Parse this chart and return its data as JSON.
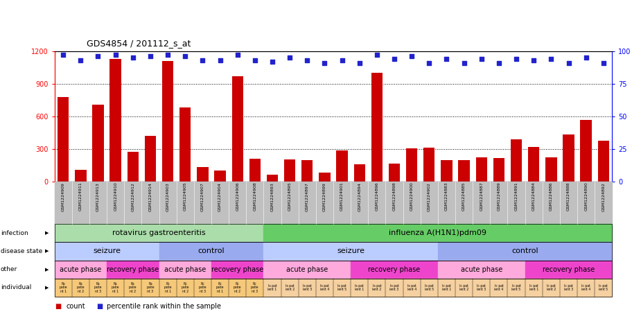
{
  "title": "GDS4854 / 201112_s_at",
  "gsm_ids": [
    "GSM1224909",
    "GSM1224911",
    "GSM1224913",
    "GSM1224910",
    "GSM1224912",
    "GSM1224914",
    "GSM1224903",
    "GSM1224905",
    "GSM1224907",
    "GSM1224904",
    "GSM1224906",
    "GSM1224908",
    "GSM1224893",
    "GSM1224895",
    "GSM1224897",
    "GSM1224899",
    "GSM1224901",
    "GSM1224894",
    "GSM1224896",
    "GSM1224898",
    "GSM1224900",
    "GSM1224902",
    "GSM1224883",
    "GSM1224885",
    "GSM1224887",
    "GSM1224889",
    "GSM1224891",
    "GSM1224884",
    "GSM1224886",
    "GSM1224888",
    "GSM1224890",
    "GSM1224892"
  ],
  "counts": [
    780,
    105,
    710,
    1130,
    275,
    420,
    1110,
    680,
    130,
    100,
    970,
    210,
    60,
    205,
    195,
    85,
    285,
    160,
    1000,
    165,
    305,
    310,
    200,
    195,
    225,
    215,
    390,
    315,
    225,
    430,
    570,
    375
  ],
  "percentiles": [
    97,
    93,
    96,
    97,
    95,
    96,
    97,
    96,
    93,
    93,
    97,
    93,
    92,
    95,
    93,
    91,
    93,
    91,
    97,
    94,
    96,
    91,
    94,
    91,
    94,
    91,
    94,
    93,
    94,
    91,
    95,
    91
  ],
  "ylim_left": [
    0,
    1200
  ],
  "ylim_right": [
    0,
    100
  ],
  "yticks_left": [
    0,
    300,
    600,
    900,
    1200
  ],
  "yticks_right": [
    0,
    25,
    50,
    75,
    100
  ],
  "bar_color": "#cc0000",
  "dot_color": "#2222cc",
  "infection_blocks": [
    {
      "label": "rotavirus gastroenteritis",
      "start": 0,
      "end": 12,
      "color": "#aaddaa"
    },
    {
      "label": "influenza A(H1N1)pdm09",
      "start": 12,
      "end": 32,
      "color": "#66cc66"
    }
  ],
  "disease_blocks": [
    {
      "label": "seizure",
      "start": 0,
      "end": 6,
      "color": "#bbccff"
    },
    {
      "label": "control",
      "start": 6,
      "end": 12,
      "color": "#99aaee"
    },
    {
      "label": "seizure",
      "start": 12,
      "end": 22,
      "color": "#bbccff"
    },
    {
      "label": "control",
      "start": 22,
      "end": 32,
      "color": "#99aaee"
    }
  ],
  "other_blocks": [
    {
      "label": "acute phase",
      "start": 0,
      "end": 3,
      "color": "#ffaadd"
    },
    {
      "label": "recovery phase",
      "start": 3,
      "end": 6,
      "color": "#ee44cc"
    },
    {
      "label": "acute phase",
      "start": 6,
      "end": 9,
      "color": "#ffaadd"
    },
    {
      "label": "recovery phase",
      "start": 9,
      "end": 12,
      "color": "#ee44cc"
    },
    {
      "label": "acute phase",
      "start": 12,
      "end": 17,
      "color": "#ffaadd"
    },
    {
      "label": "recovery phase",
      "start": 17,
      "end": 22,
      "color": "#ee44cc"
    },
    {
      "label": "acute phase",
      "start": 22,
      "end": 27,
      "color": "#ffaadd"
    },
    {
      "label": "recovery phase",
      "start": 27,
      "end": 32,
      "color": "#ee44cc"
    }
  ],
  "individual_rota_color": "#f5c87a",
  "individual_flu_color": "#f5d0a0",
  "legend_bar_label": "count",
  "legend_dot_label": "percentile rank within the sample",
  "gsm_bg_color": "#c0c0c0",
  "n_rota": 12,
  "n_flu": 20
}
